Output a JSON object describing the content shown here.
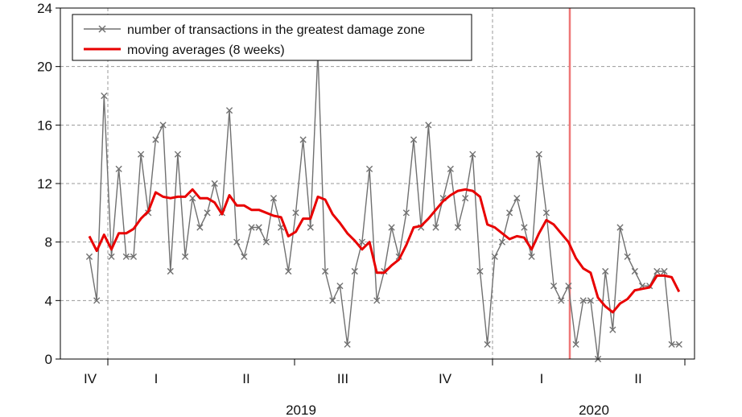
{
  "chart_data": {
    "type": "line",
    "title": "",
    "xlabel": "",
    "ylabel": "",
    "ylim": [
      0,
      24
    ],
    "y_ticks": [
      0,
      4,
      8,
      12,
      16,
      20,
      24
    ],
    "grid": "horizontal dashed",
    "legend_position": "top-left",
    "quarter_labels": [
      "IV",
      "I",
      "II",
      "III",
      "IV",
      "I",
      "II"
    ],
    "year_labels": [
      "2019",
      "2020"
    ],
    "event_line_week": 65,
    "series": [
      {
        "name": "number of transactions in the greatest damage zone",
        "color": "#707070",
        "marker": "x",
        "values": [
          7,
          4,
          18,
          7,
          13,
          7,
          7,
          14,
          10,
          15,
          16,
          6,
          14,
          7,
          11,
          9,
          10,
          12,
          10,
          17,
          8,
          7,
          9,
          9,
          8,
          11,
          9,
          6,
          10,
          15,
          9,
          21,
          6,
          4,
          5,
          1,
          6,
          8,
          13,
          4,
          6,
          9,
          7,
          10,
          15,
          9,
          16,
          9,
          11,
          13,
          9,
          11,
          14,
          6,
          1,
          7,
          8,
          10,
          11,
          9,
          7,
          14,
          10,
          5,
          4,
          5,
          1,
          4,
          4,
          0,
          6,
          2,
          9,
          7,
          6,
          5,
          5,
          6,
          6,
          1,
          1
        ]
      },
      {
        "name": "moving averages (8 weeks)",
        "color": "#e80000",
        "marker": "none",
        "start_week": 0,
        "values": [
          8.4,
          7.4,
          8.5,
          7.5,
          8.6,
          8.6,
          8.9,
          9.6,
          10.1,
          11.4,
          11.1,
          11.0,
          11.1,
          11.1,
          11.6,
          11.0,
          11.0,
          10.7,
          9.9,
          11.2,
          10.5,
          10.5,
          10.2,
          10.2,
          10.0,
          9.8,
          9.7,
          8.4,
          8.7,
          9.6,
          9.6,
          11.1,
          10.9,
          9.9,
          9.3,
          8.6,
          8.1,
          7.5,
          8.0,
          5.9,
          5.9,
          6.4,
          6.8,
          7.8,
          9.0,
          9.1,
          9.6,
          10.2,
          10.8,
          11.2,
          11.5,
          11.6,
          11.5,
          11.1,
          9.2,
          9.0,
          8.6,
          8.2,
          8.4,
          8.3,
          7.5,
          8.6,
          9.5,
          9.2,
          8.6,
          8.0,
          6.9,
          6.2,
          5.9,
          4.2,
          3.6,
          3.2,
          3.8,
          4.1,
          4.7,
          4.8,
          4.9,
          5.7,
          5.7,
          5.6,
          4.6
        ]
      }
    ]
  }
}
